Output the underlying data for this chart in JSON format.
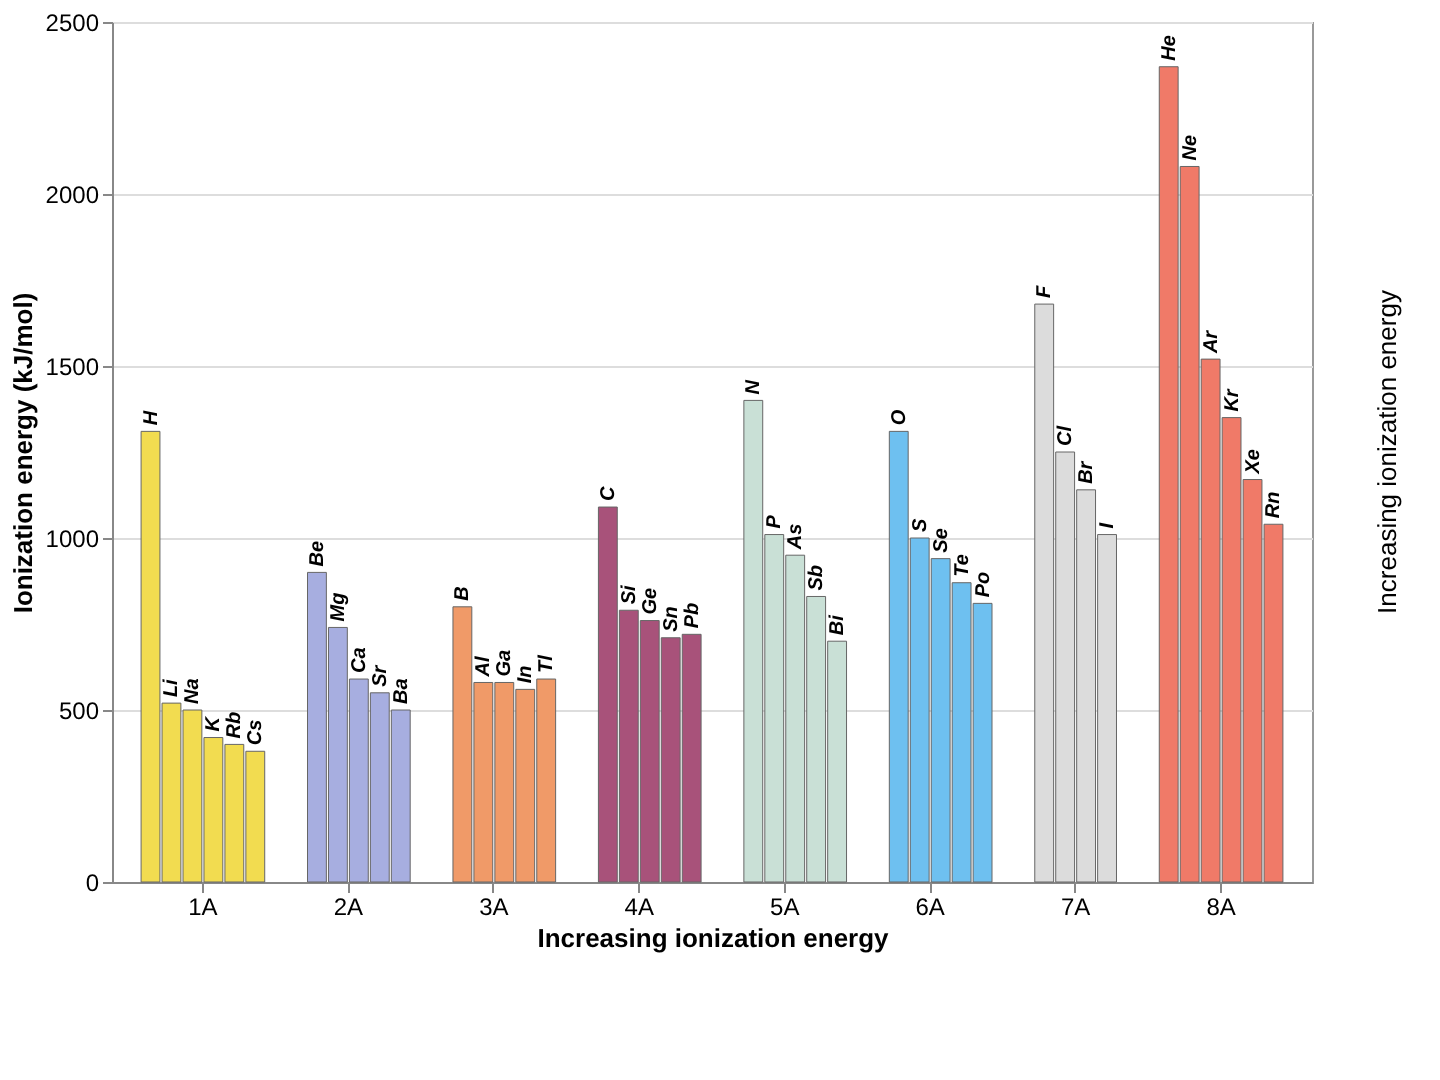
{
  "chart_data": {
    "type": "bar",
    "xlabel": "Increasing ionization energy",
    "ylabel": "Ionization energy (kJ/mol)",
    "categories": [
      "1A",
      "2A",
      "3A",
      "4A",
      "5A",
      "6A",
      "7A",
      "8A"
    ],
    "ylim": [
      0,
      2500
    ],
    "yticks": [
      0,
      500,
      1000,
      1500,
      2000,
      2500
    ],
    "grid": "y",
    "annotations": [
      "Increasing ionization energy"
    ],
    "series": [
      {
        "values": [
          1310,
          null,
          null,
          null,
          null,
          null,
          null,
          2370
        ],
        "value_labels": [
          "H",
          null,
          null,
          null,
          null,
          null,
          null,
          "He"
        ],
        "colors": [
          "#f2dc50",
          "#a7aee0",
          "#f09a68",
          "#a8527a",
          "#c9e0d6",
          "#6ec0f0",
          "#dcdcdc",
          "#f07a68"
        ]
      },
      {
        "values": [
          520,
          900,
          800,
          1090,
          1400,
          1310,
          1680,
          2080
        ],
        "value_labels": [
          "Li",
          "Be",
          "B",
          "C",
          "N",
          "O",
          "F",
          "Ne"
        ],
        "colors": [
          "#f2dc50",
          "#a7aee0",
          "#f09a68",
          "#a8527a",
          "#c9e0d6",
          "#6ec0f0",
          "#dcdcdc",
          "#f07a68"
        ]
      },
      {
        "values": [
          500,
          740,
          580,
          790,
          1010,
          1000,
          1250,
          1520
        ],
        "value_labels": [
          "Na",
          "Mg",
          "Al",
          "Si",
          "P",
          "S",
          "Cl",
          "Ar"
        ],
        "colors": [
          "#f2dc50",
          "#a7aee0",
          "#f09a68",
          "#a8527a",
          "#c9e0d6",
          "#6ec0f0",
          "#dcdcdc",
          "#f07a68"
        ]
      },
      {
        "values": [
          420,
          590,
          580,
          760,
          950,
          940,
          1140,
          1350
        ],
        "value_labels": [
          "K",
          "Ca",
          "Ga",
          "Ge",
          "As",
          "Se",
          "Br",
          "Kr"
        ],
        "colors": [
          "#f2dc50",
          "#a7aee0",
          "#f09a68",
          "#a8527a",
          "#c9e0d6",
          "#6ec0f0",
          "#dcdcdc",
          "#f07a68"
        ]
      },
      {
        "values": [
          400,
          550,
          560,
          710,
          830,
          870,
          1010,
          1170
        ],
        "value_labels": [
          "Rb",
          "Sr",
          "In",
          "Sn",
          "Sb",
          "Te",
          "I",
          "Xe"
        ],
        "colors": [
          "#f2dc50",
          "#a7aee0",
          "#f09a68",
          "#a8527a",
          "#c9e0d6",
          "#6ec0f0",
          "#dcdcdc",
          "#f07a68"
        ]
      },
      {
        "values": [
          380,
          500,
          590,
          720,
          700,
          810,
          null,
          1040
        ],
        "value_labels": [
          "Cs",
          "Ba",
          "Tl",
          "Pb",
          "Bi",
          "Po",
          null,
          "Rn"
        ],
        "colors": [
          "#f2dc50",
          "#a7aee0",
          "#f09a68",
          "#a8527a",
          "#c9e0d6",
          "#6ec0f0",
          "#dcdcdc",
          "#f07a68"
        ]
      }
    ]
  }
}
